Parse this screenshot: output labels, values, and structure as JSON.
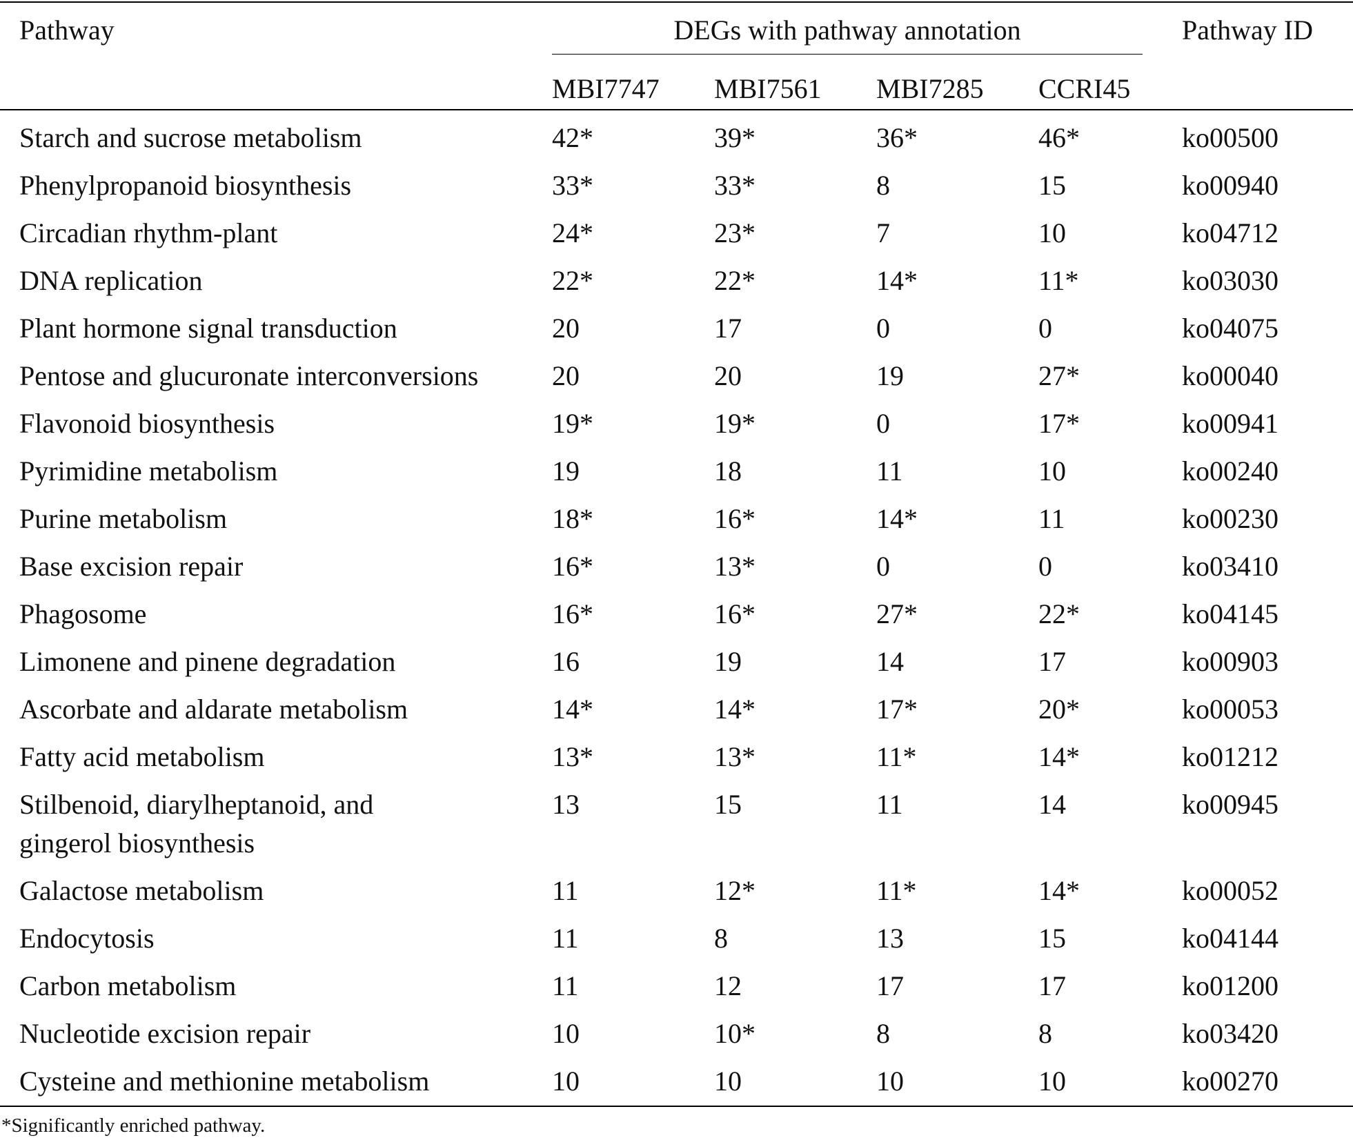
{
  "table": {
    "header": {
      "pathway": "Pathway",
      "group": "DEGs with pathway annotation",
      "columns": [
        "MBI7747",
        "MBI7561",
        "MBI7285",
        "CCRI45"
      ],
      "pathway_id": "Pathway ID"
    },
    "rows": [
      [
        "Starch and sucrose metabolism",
        "42*",
        "39*",
        "36*",
        "46*",
        "ko00500"
      ],
      [
        "Phenylpropanoid biosynthesis",
        "33*",
        "33*",
        "8",
        "15",
        "ko00940"
      ],
      [
        "Circadian rhythm-plant",
        "24*",
        "23*",
        "7",
        "10",
        "ko04712"
      ],
      [
        "DNA replication",
        "22*",
        "22*",
        "14*",
        "11*",
        "ko03030"
      ],
      [
        "Plant hormone signal transduction",
        "20",
        "17",
        "0",
        "0",
        "ko04075"
      ],
      [
        "Pentose and glucuronate interconversions",
        "20",
        "20",
        "19",
        "27*",
        "ko00040"
      ],
      [
        "Flavonoid biosynthesis",
        "19*",
        "19*",
        "0",
        "17*",
        "ko00941"
      ],
      [
        "Pyrimidine metabolism",
        "19",
        "18",
        "11",
        "10",
        "ko00240"
      ],
      [
        "Purine metabolism",
        "18*",
        "16*",
        "14*",
        "11",
        "ko00230"
      ],
      [
        "Base excision repair",
        "16*",
        "13*",
        "0",
        "0",
        "ko03410"
      ],
      [
        "Phagosome",
        "16*",
        "16*",
        "27*",
        "22*",
        "ko04145"
      ],
      [
        "Limonene and pinene degradation",
        "16",
        "19",
        "14",
        "17",
        "ko00903"
      ],
      [
        "Ascorbate and aldarate metabolism",
        "14*",
        "14*",
        "17*",
        "20*",
        "ko00053"
      ],
      [
        "Fatty acid metabolism",
        "13*",
        "13*",
        "11*",
        "14*",
        "ko01212"
      ],
      [
        "Stilbenoid, diarylheptanoid, and\ngingerol biosynthesis",
        "13",
        "15",
        "11",
        "14",
        "ko00945"
      ],
      [
        "Galactose metabolism",
        "11",
        "12*",
        "11*",
        "14*",
        "ko00052"
      ],
      [
        "Endocytosis",
        "11",
        "8",
        "13",
        "15",
        "ko04144"
      ],
      [
        "Carbon metabolism",
        "11",
        "12",
        "17",
        "17",
        "ko01200"
      ],
      [
        "Nucleotide excision repair",
        "10",
        "10*",
        "8",
        "8",
        "ko03420"
      ],
      [
        "Cysteine and methionine metabolism",
        "10",
        "10",
        "10",
        "10",
        "ko00270"
      ]
    ]
  },
  "footnote": "*Significantly enriched pathway."
}
